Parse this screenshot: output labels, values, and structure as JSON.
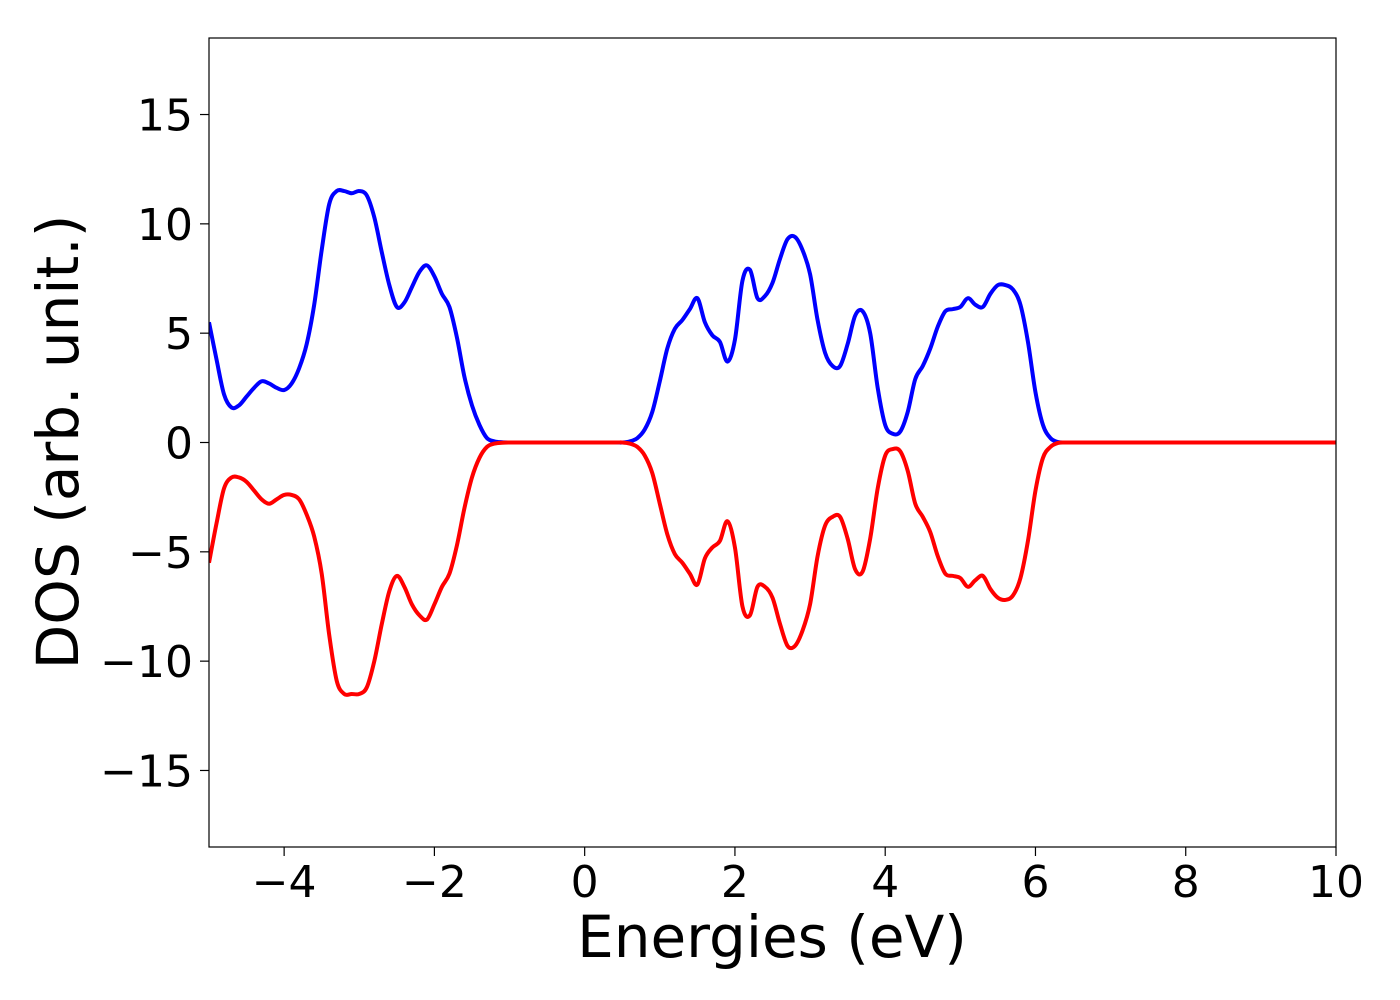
{
  "chart_data": {
    "type": "line",
    "title": "",
    "xlabel": "Energies (eV)",
    "ylabel": "DOS (arb. unit.)",
    "xlim": [
      -5,
      10
    ],
    "ylim": [
      -18.5,
      18.5
    ],
    "xticks": [
      "−4",
      "−2",
      "0",
      "2",
      "4",
      "6",
      "8",
      "10"
    ],
    "yticks": [
      "−15",
      "−10",
      "−5",
      "0",
      "5",
      "10",
      "15"
    ],
    "xtick_values": [
      -4,
      -2,
      0,
      2,
      4,
      6,
      8,
      10
    ],
    "ytick_values": [
      -15,
      -10,
      -5,
      0,
      5,
      10,
      15
    ],
    "grid": false,
    "series": [
      {
        "color": "#0000ff",
        "x": [
          -5.0,
          -4.9,
          -4.8,
          -4.7,
          -4.6,
          -4.5,
          -4.4,
          -4.3,
          -4.2,
          -4.1,
          -4.0,
          -3.9,
          -3.8,
          -3.7,
          -3.6,
          -3.5,
          -3.4,
          -3.3,
          -3.2,
          -3.1,
          -3.0,
          -2.9,
          -2.8,
          -2.7,
          -2.6,
          -2.5,
          -2.4,
          -2.3,
          -2.2,
          -2.1,
          -2.0,
          -1.9,
          -1.8,
          -1.7,
          -1.6,
          -1.5,
          -1.4,
          -1.3,
          -1.2,
          -1.1,
          -1.0,
          -0.9,
          -0.8,
          -0.7,
          -0.6,
          -0.5,
          -0.4,
          0.0,
          0.4,
          0.5,
          0.6,
          0.7,
          0.8,
          0.9,
          1.0,
          1.1,
          1.2,
          1.3,
          1.4,
          1.5,
          1.6,
          1.7,
          1.8,
          1.9,
          2.0,
          2.1,
          2.2,
          2.3,
          2.4,
          2.5,
          2.6,
          2.7,
          2.8,
          2.9,
          3.0,
          3.1,
          3.2,
          3.3,
          3.4,
          3.5,
          3.6,
          3.7,
          3.8,
          3.9,
          4.0,
          4.1,
          4.2,
          4.3,
          4.4,
          4.5,
          4.6,
          4.7,
          4.8,
          4.9,
          5.0,
          5.1,
          5.2,
          5.3,
          5.4,
          5.5,
          5.6,
          5.7,
          5.8,
          5.9,
          6.0,
          6.1,
          6.2,
          6.3,
          6.4,
          6.5,
          6.6,
          6.7,
          6.8,
          6.9,
          7.0,
          7.1,
          7.2,
          7.3,
          7.4,
          7.5,
          7.6,
          7.7,
          7.8,
          7.9,
          8.0,
          8.1,
          8.2,
          8.3,
          8.4,
          8.5,
          8.6,
          8.8,
          10.0
        ],
        "y": [
          5.5,
          3.8,
          2.2,
          1.6,
          1.7,
          2.1,
          2.5,
          2.8,
          2.7,
          2.5,
          2.4,
          2.7,
          3.4,
          4.5,
          6.3,
          8.8,
          10.9,
          11.5,
          11.5,
          11.4,
          11.5,
          11.3,
          10.3,
          8.7,
          7.2,
          6.2,
          6.4,
          7.1,
          7.8,
          8.1,
          7.6,
          6.8,
          6.2,
          4.8,
          3.0,
          1.7,
          0.8,
          0.2,
          0.05,
          0.01,
          0.0,
          0.0,
          0.0,
          0.0,
          0.0,
          0.0,
          0.0,
          0.0,
          0.0,
          0.0,
          0.05,
          0.2,
          0.6,
          1.4,
          2.8,
          4.3,
          5.2,
          5.6,
          6.1,
          6.6,
          5.5,
          4.9,
          4.6,
          3.7,
          4.7,
          7.4,
          7.9,
          6.6,
          6.7,
          7.3,
          8.4,
          9.3,
          9.4,
          8.8,
          7.7,
          5.6,
          4.1,
          3.5,
          3.5,
          4.5,
          5.8,
          6.0,
          5.0,
          2.5,
          0.8,
          0.4,
          0.5,
          1.4,
          2.9,
          3.5,
          4.3,
          5.3,
          6.0,
          6.1,
          6.2,
          6.6,
          6.3,
          6.2,
          6.8,
          7.2,
          7.2,
          7.0,
          6.3,
          4.6,
          2.3,
          0.8,
          0.2,
          0.02,
          0.0,
          0.0,
          0.0,
          0.0,
          0.0,
          0.0,
          0.0,
          0.0,
          0.0,
          0.0,
          0.0,
          0.0,
          0.0,
          0.0,
          0.0,
          0.0,
          0.0,
          0.0,
          0.0,
          0.0,
          0.0,
          0.0,
          0.0,
          0.0,
          0.0
        ]
      },
      {
        "color": "#ff0000",
        "x": [
          -5.0,
          -4.9,
          -4.8,
          -4.7,
          -4.6,
          -4.5,
          -4.4,
          -4.3,
          -4.2,
          -4.1,
          -4.0,
          -3.9,
          -3.8,
          -3.7,
          -3.6,
          -3.5,
          -3.4,
          -3.3,
          -3.2,
          -3.1,
          -3.0,
          -2.9,
          -2.8,
          -2.7,
          -2.6,
          -2.5,
          -2.4,
          -2.3,
          -2.2,
          -2.1,
          -2.0,
          -1.9,
          -1.8,
          -1.7,
          -1.6,
          -1.5,
          -1.4,
          -1.3,
          -1.2,
          -1.1,
          -1.0,
          -0.9,
          -0.8,
          -0.7,
          -0.6,
          -0.5,
          -0.4,
          0.0,
          0.4,
          0.5,
          0.6,
          0.7,
          0.8,
          0.9,
          1.0,
          1.1,
          1.2,
          1.3,
          1.4,
          1.5,
          1.6,
          1.7,
          1.8,
          1.9,
          2.0,
          2.1,
          2.2,
          2.3,
          2.4,
          2.5,
          2.6,
          2.7,
          2.8,
          2.9,
          3.0,
          3.1,
          3.2,
          3.3,
          3.4,
          3.5,
          3.6,
          3.7,
          3.8,
          3.9,
          4.0,
          4.1,
          4.2,
          4.3,
          4.4,
          4.5,
          4.6,
          4.7,
          4.8,
          4.9,
          5.0,
          5.1,
          5.2,
          5.3,
          5.4,
          5.5,
          5.6,
          5.7,
          5.8,
          5.9,
          6.0,
          6.1,
          6.2,
          6.3,
          6.4,
          6.5,
          6.6,
          6.7,
          6.8,
          6.9,
          7.0,
          7.1,
          7.2,
          7.3,
          7.4,
          7.5,
          7.6,
          7.7,
          7.8,
          7.9,
          8.0,
          8.1,
          8.2,
          8.3,
          8.4,
          8.5,
          8.6,
          8.8,
          10.0
        ],
        "y": [
          -5.5,
          -3.7,
          -2.1,
          -1.6,
          -1.6,
          -1.8,
          -2.2,
          -2.6,
          -2.8,
          -2.6,
          -2.4,
          -2.4,
          -2.6,
          -3.3,
          -4.3,
          -6.0,
          -8.8,
          -10.9,
          -11.5,
          -11.5,
          -11.5,
          -11.2,
          -10.0,
          -8.3,
          -6.8,
          -6.1,
          -6.6,
          -7.4,
          -7.9,
          -8.1,
          -7.4,
          -6.6,
          -6.0,
          -4.7,
          -3.0,
          -1.6,
          -0.7,
          -0.2,
          -0.05,
          -0.01,
          0.0,
          0.0,
          0.0,
          0.0,
          0.0,
          0.0,
          0.0,
          0.0,
          0.0,
          0.0,
          -0.05,
          -0.2,
          -0.6,
          -1.4,
          -2.8,
          -4.2,
          -5.1,
          -5.5,
          -6.0,
          -6.5,
          -5.3,
          -4.8,
          -4.5,
          -3.6,
          -4.8,
          -7.5,
          -7.9,
          -6.6,
          -6.6,
          -7.1,
          -8.3,
          -9.3,
          -9.3,
          -8.6,
          -7.4,
          -5.2,
          -3.8,
          -3.4,
          -3.4,
          -4.4,
          -5.8,
          -5.9,
          -4.4,
          -2.1,
          -0.6,
          -0.3,
          -0.4,
          -1.3,
          -2.8,
          -3.4,
          -4.1,
          -5.2,
          -6.0,
          -6.1,
          -6.2,
          -6.6,
          -6.3,
          -6.1,
          -6.7,
          -7.1,
          -7.2,
          -7.0,
          -6.2,
          -4.5,
          -2.2,
          -0.7,
          -0.2,
          -0.02,
          0.0,
          0.0,
          0.0,
          0.0,
          0.0,
          0.0,
          0.0,
          0.0,
          0.0,
          0.0,
          0.0,
          0.0,
          0.0,
          0.0,
          0.0,
          0.0,
          0.0,
          0.0,
          0.0,
          0.0,
          0.0,
          0.0,
          0.0,
          0.0,
          0.0
        ]
      }
    ]
  }
}
